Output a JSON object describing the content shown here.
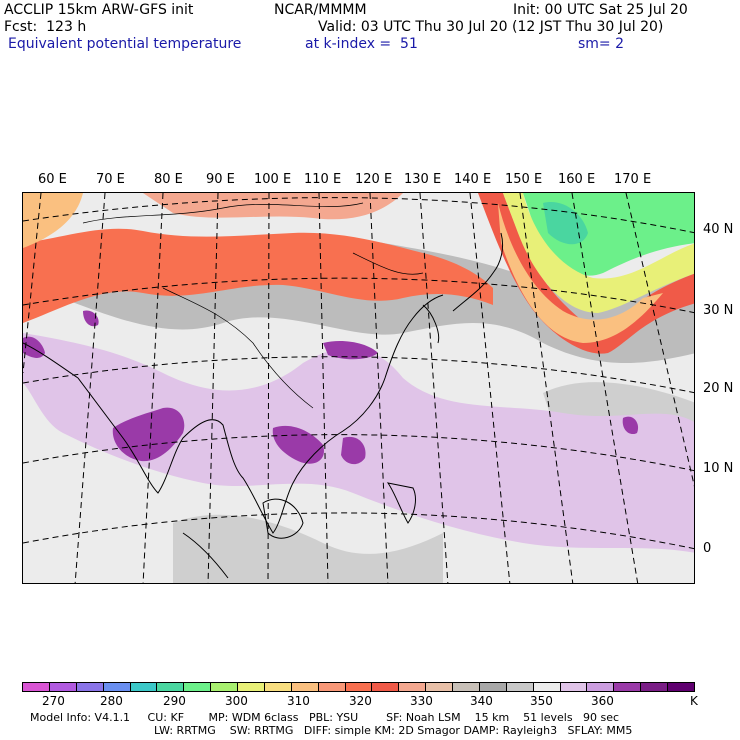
{
  "header": {
    "model_line": "ACCLIP 15km ARW-GFS init",
    "org": "NCAR/MMMM",
    "init": "Init: 00 UTC Sat 25 Jul 20",
    "fcst": "Fcst:  123 h",
    "valid": "Valid: 03 UTC Thu 30 Jul 20 (12 JST Thu 30 Jul 20)",
    "field": "Equivalent potential temperature",
    "level": "at k-index =  51",
    "smooth": "sm= 2"
  },
  "map": {
    "lon_labels": [
      "60 E",
      "70 E",
      "80 E",
      "90 E",
      "100 E",
      "110 E",
      "120 E",
      "130 E",
      "140 E",
      "150 E",
      "160 E",
      "170 E"
    ],
    "lat_labels": [
      "40 N",
      "30 N",
      "20 N",
      "10 N",
      "0"
    ]
  },
  "colorbar": {
    "colors": [
      "#d955d4",
      "#b15ae0",
      "#8a74e8",
      "#6a8ff0",
      "#3cc8c8",
      "#4ad6a0",
      "#6cf08a",
      "#a8f070",
      "#e8f078",
      "#f8de80",
      "#fac080",
      "#f89878",
      "#f87050",
      "#f05a48",
      "#f4a890",
      "#e8c0a8",
      "#c8c0b8",
      "#a8a8a8",
      "#c8c8c8",
      "#ececec",
      "#e0c4e8",
      "#cc9ee0",
      "#9a3aa8",
      "#7a1e86",
      "#600070"
    ],
    "labels": [
      "270",
      "280",
      "290",
      "300",
      "310",
      "320",
      "330",
      "340",
      "350",
      "360",
      "K"
    ]
  },
  "footer": {
    "line1": "Model Info: V4.1.1     CU: KF       MP: WDM 6class   PBL: YSU        SF: Noah LSM    15 km    51 levels   90 sec",
    "line2": "LW: RRTMG    SW: RRTMG   DIFF: simple KM: 2D Smagor DAMP: Rayleigh3   SFLAY: MM5"
  }
}
